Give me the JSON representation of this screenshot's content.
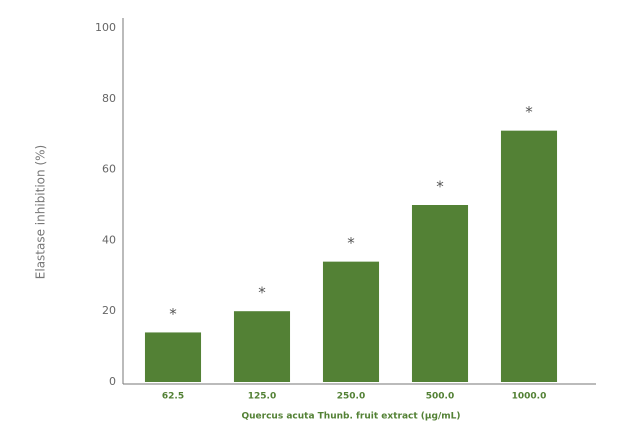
{
  "chart_data": {
    "type": "bar",
    "categories": [
      "62.5",
      "125.0",
      "250.0",
      "500.0",
      "1000.0"
    ],
    "values": [
      14,
      20,
      34,
      50,
      71
    ],
    "annotations": [
      "*",
      "*",
      "*",
      "*",
      "*"
    ],
    "color": "#538135",
    "x_label": "Quercus acuta Thunb. fruit extract (μg/mL)",
    "y_label": "Elastase inhibition (%)",
    "ylim": [
      0,
      100
    ],
    "yticks": [
      0,
      20,
      40,
      60,
      80,
      100
    ],
    "grid": false
  }
}
